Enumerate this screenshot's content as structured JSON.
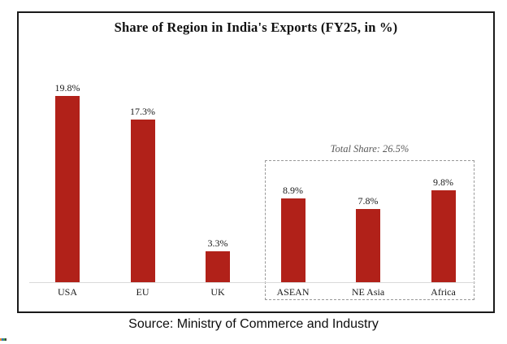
{
  "source": "Source: Ministry of Commerce and Industry",
  "colors": {
    "bar": "#b12119",
    "axis_line": "#d9d9d9",
    "group_box_border": "#999999",
    "annotation_text": "#595959",
    "frame_border": "#1a1a1a",
    "artifact_segments": [
      "#e08a2e",
      "#2f6fce",
      "#3da648",
      "#444444"
    ]
  },
  "chart_data": {
    "type": "bar",
    "title": "Share of Region in India's Exports (FY25, in %)",
    "categories": [
      "USA",
      "EU",
      "UK",
      "ASEAN",
      "NE Asia",
      "Africa"
    ],
    "values": [
      19.8,
      17.3,
      3.3,
      8.9,
      7.8,
      9.8
    ],
    "data_labels": [
      "19.8%",
      "17.3%",
      "3.3%",
      "8.9%",
      "7.8%",
      "9.8%"
    ],
    "unit": "percent",
    "xlabel": "",
    "ylabel": "",
    "ylim": [
      0,
      22
    ],
    "grid": false,
    "legend": false,
    "y_axis_visible": false,
    "annotation_group": {
      "label": "Total Share: 26.5%",
      "total": 26.5,
      "categories": [
        "ASEAN",
        "NE Asia",
        "Africa"
      ]
    }
  }
}
